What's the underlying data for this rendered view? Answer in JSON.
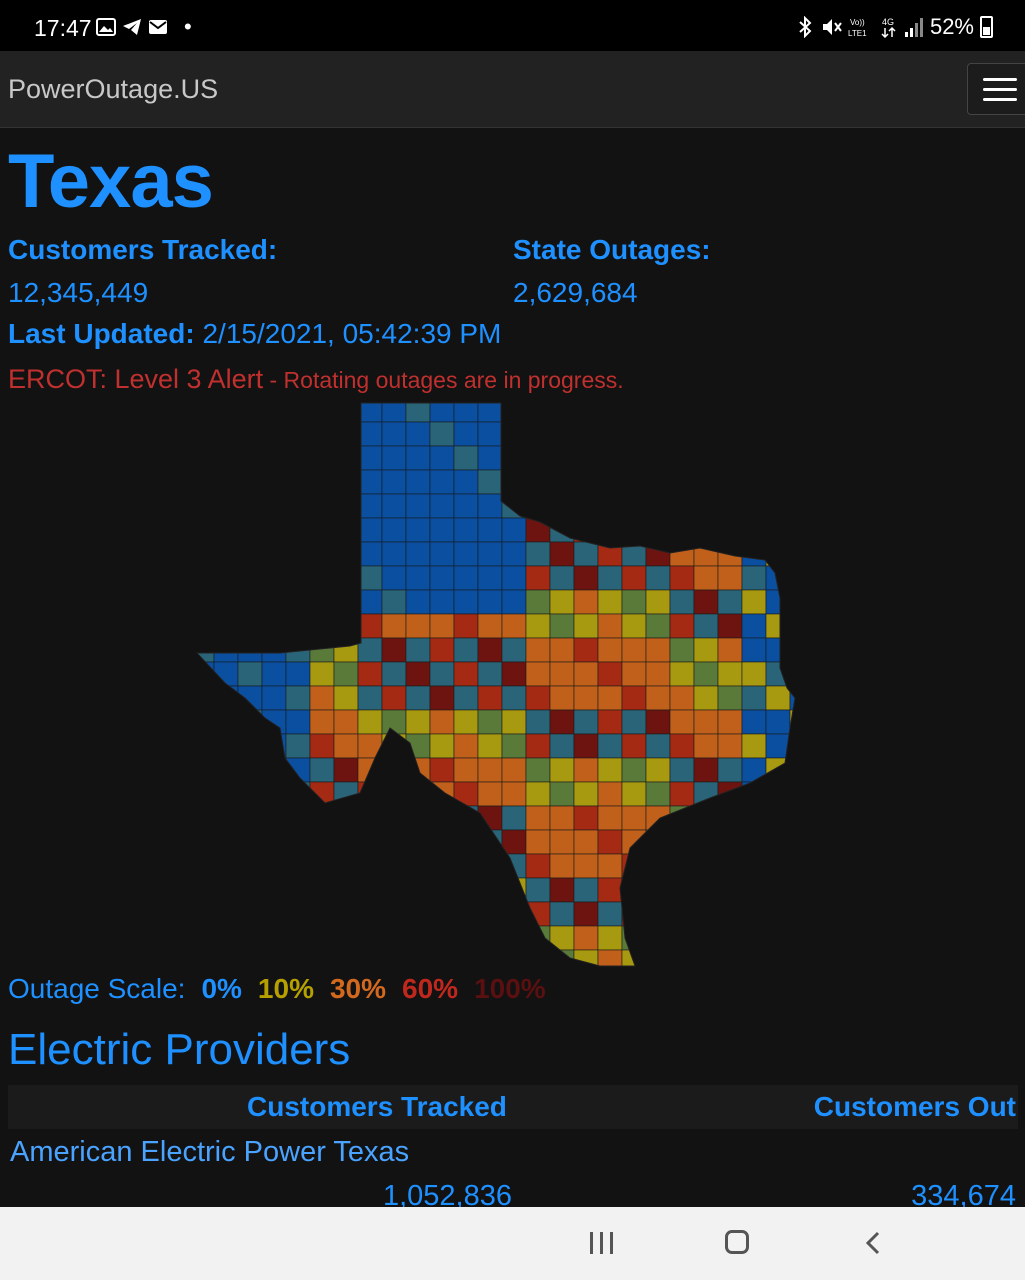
{
  "status_bar": {
    "time": "17:47",
    "battery": "52%",
    "icons_left": [
      "gallery-icon",
      "telegram-icon",
      "mail-icon"
    ],
    "icons_right": [
      "bluetooth-icon",
      "mute-icon",
      "volte-icon",
      "4g-icon",
      "signal-icon",
      "battery-icon"
    ]
  },
  "navbar": {
    "brand": "PowerOutage.US"
  },
  "state": {
    "title": "Texas",
    "customers_tracked_label": "Customers Tracked:",
    "customers_tracked_value": "12,345,449",
    "state_outages_label": "State Outages:",
    "state_outages_value": "2,629,684",
    "last_updated_label": "Last Updated:",
    "last_updated_value": "2/15/2021, 05:42:39 PM",
    "alert_main": "ERCOT: Level 3 Alert",
    "alert_detail": " - Rotating outages are in progress."
  },
  "scale": {
    "label": "Outage Scale:",
    "levels": [
      {
        "text": "0%",
        "color": "#1e90ff"
      },
      {
        "text": "10%",
        "color": "#b5a000"
      },
      {
        "text": "30%",
        "color": "#d2691e"
      },
      {
        "text": "60%",
        "color": "#c0281e"
      },
      {
        "text": "100%",
        "color": "#5a1010"
      }
    ]
  },
  "providers": {
    "title": "Electric Providers",
    "col_tracked": "Customers Tracked",
    "col_out": "Customers Out",
    "rows": [
      {
        "name": "American Electric Power Texas",
        "tracked": "1,052,836",
        "out": "334,674"
      }
    ]
  },
  "map_colors": {
    "blue": "#0a4fa0",
    "teal": "#2a6478",
    "olive": "#5a7a3a",
    "yellow": "#a89a10",
    "orange": "#c0601a",
    "red": "#a52a14",
    "darkred": "#6e1410"
  }
}
